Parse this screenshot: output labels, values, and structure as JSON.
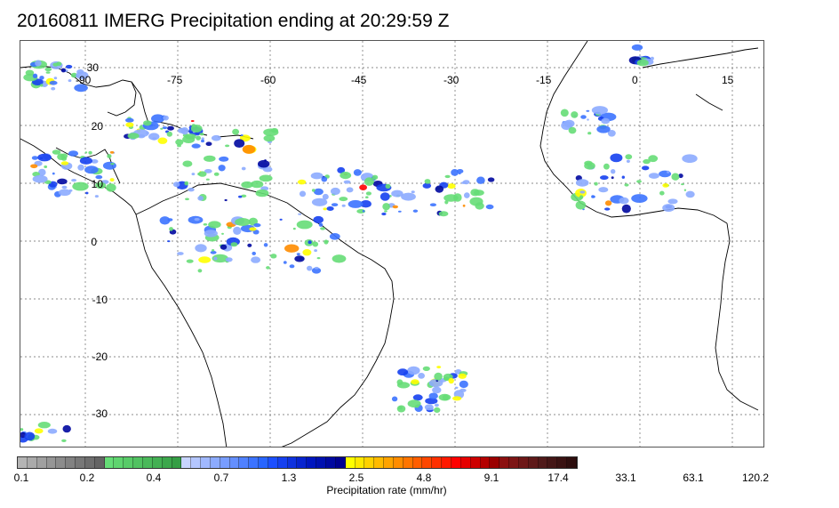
{
  "title": "20160811 IMERG Precipitation ending at 20:29:59 Z",
  "map": {
    "lon_labels": [
      "-90",
      "-75",
      "-60",
      "-45",
      "-30",
      "-15",
      "0",
      "15"
    ],
    "lat_labels": [
      "30",
      "20",
      "10",
      "0",
      "-10",
      "-20",
      "-30"
    ],
    "graticule_style": "dotted",
    "coastline_color": "#000000"
  },
  "colorbar": {
    "title": "Precipitation rate (mm/hr)",
    "tick_labels": [
      "0.1",
      "0.2",
      "0.4",
      "0.7",
      "1.3",
      "2.5",
      "4.8",
      "9.1",
      "17.4",
      "33.1",
      "63.1",
      "120.2"
    ],
    "colors": [
      "#b4b4b4",
      "#aaaaaa",
      "#a0a0a0",
      "#969696",
      "#8c8c8c",
      "#828282",
      "#787878",
      "#6e6e6e",
      "#646464",
      "#66dd77",
      "#5fd46f",
      "#58cb68",
      "#51c261",
      "#4ab95a",
      "#43b053",
      "#3ca74c",
      "#359e45",
      "#c8d4ff",
      "#b4c6ff",
      "#a0b8ff",
      "#8cabff",
      "#789dff",
      "#648fff",
      "#5081ff",
      "#3c73ff",
      "#2865ff",
      "#1c4fff",
      "#1540ef",
      "#0e32df",
      "#0724cf",
      "#0016bf",
      "#0010b0",
      "#0008a0",
      "#000090",
      "#ffff00",
      "#ffe800",
      "#ffd100",
      "#ffba00",
      "#ffa300",
      "#ff8c00",
      "#ff7500",
      "#ff5e00",
      "#ff4700",
      "#ff3000",
      "#ff1900",
      "#ff0000",
      "#e60000",
      "#cd0000",
      "#b40000",
      "#9b0000",
      "#8c1010",
      "#7d1515",
      "#6e1818",
      "#5f1a1a",
      "#501a1a",
      "#441616",
      "#3a1212",
      "#2e0e0e"
    ]
  }
}
